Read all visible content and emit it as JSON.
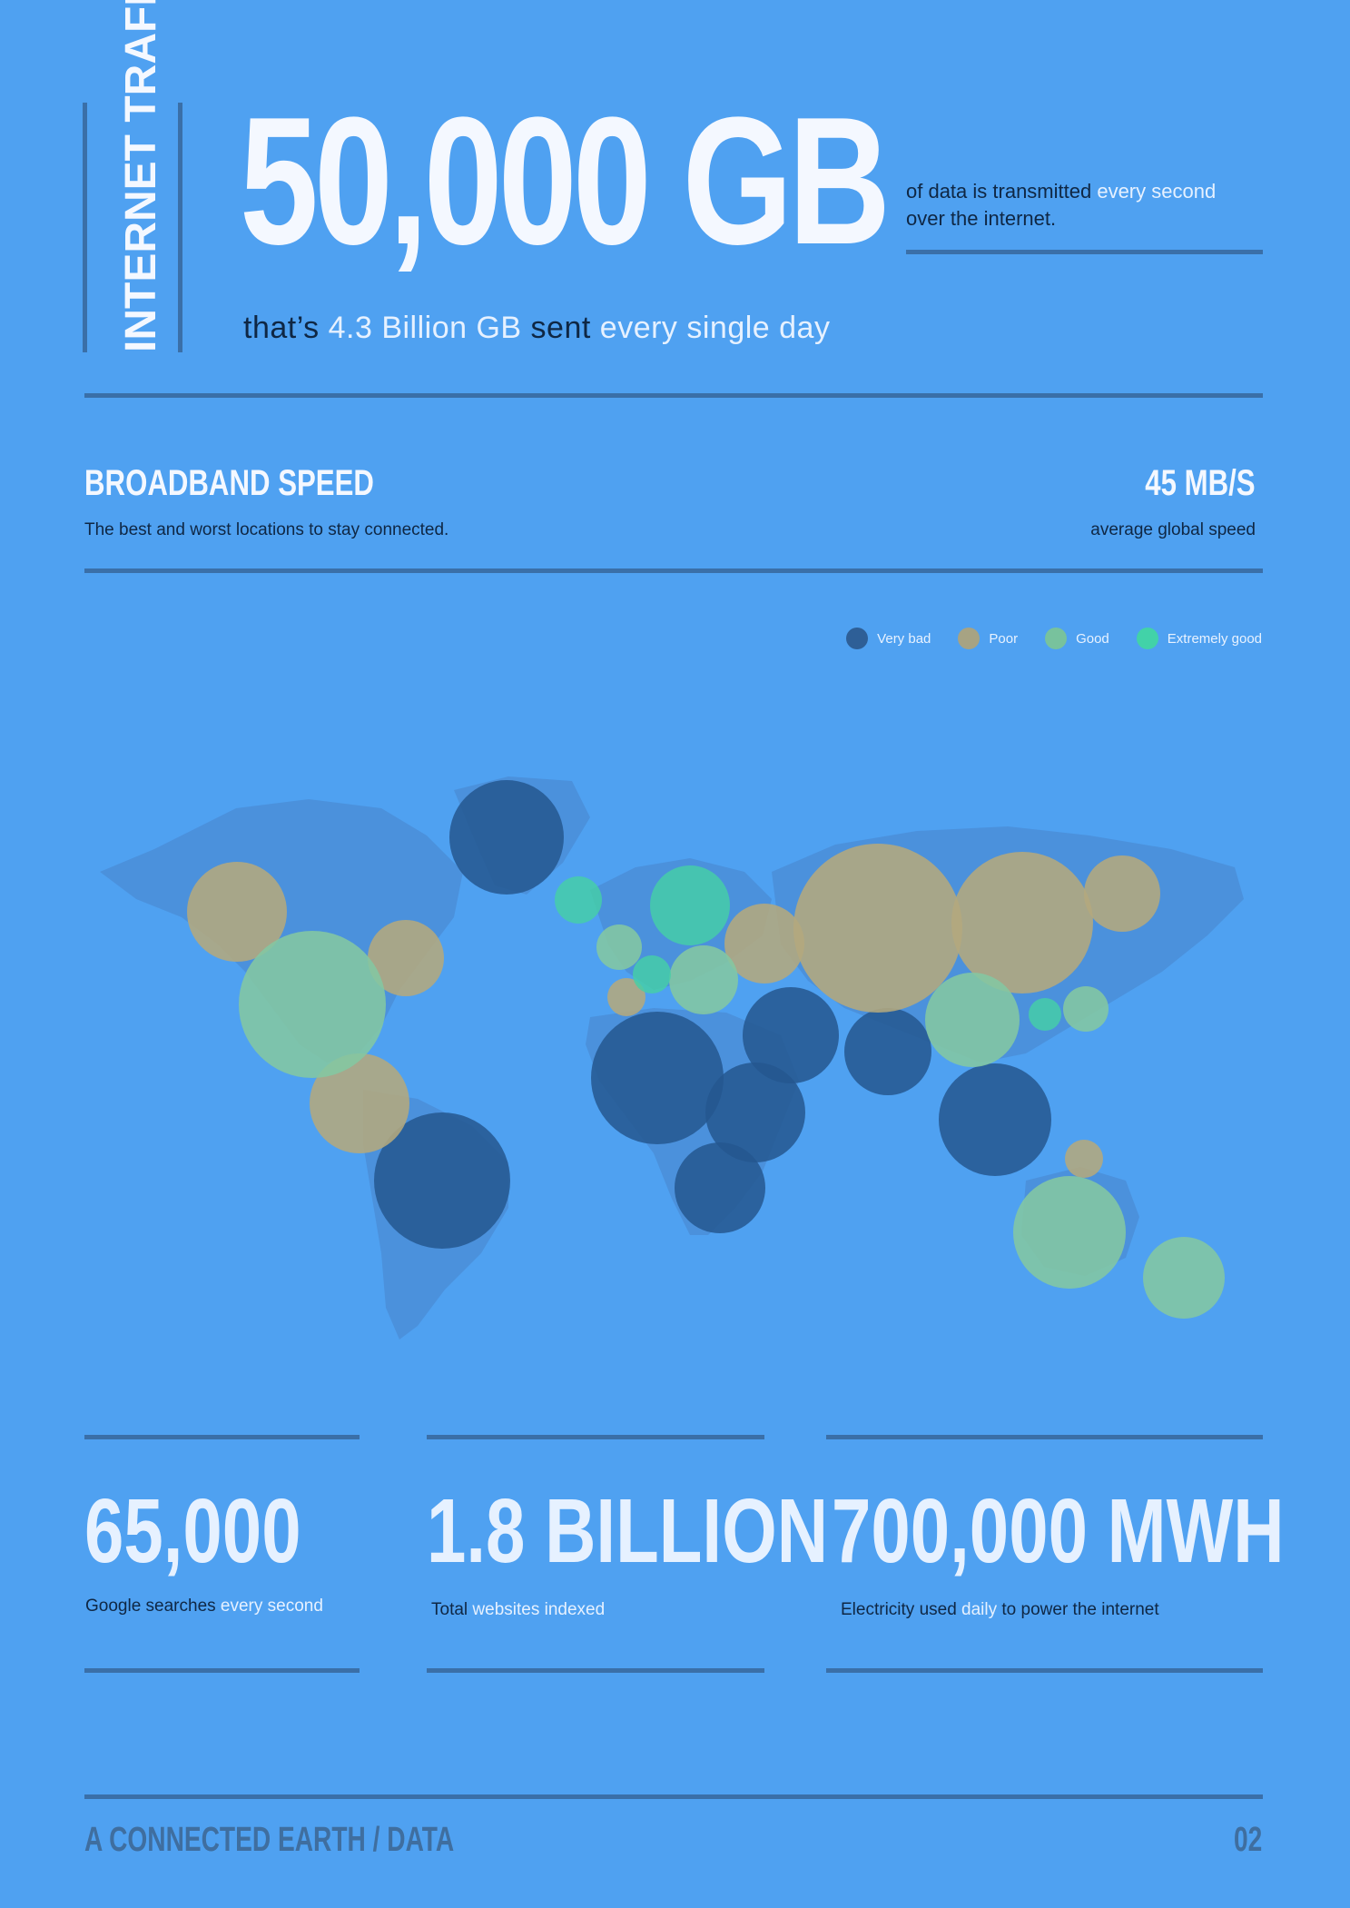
{
  "header": {
    "side_title": "INTERNET TRAFFIC",
    "big_number": "50,000 GB",
    "subline": {
      "p1": "that’s ",
      "p2": "4.3 Billion GB",
      "p3": " sent ",
      "p4": "every single day"
    },
    "description": {
      "p1": "of data is transmitted ",
      "p2": "every second",
      "p3": "over the internet."
    }
  },
  "broadband": {
    "title": "BROADBAND SPEED",
    "subtitle": "The best and worst locations to stay connected.",
    "average_value": "45 MB/S",
    "average_label": "average global speed"
  },
  "legend": [
    {
      "label": "Very bad",
      "color": "#2e5f97"
    },
    {
      "label": "Poor",
      "color": "#a7a383"
    },
    {
      "label": "Good",
      "color": "#78c29d"
    },
    {
      "label": "Extremely good",
      "color": "#42d2a8"
    }
  ],
  "stats": [
    {
      "value": "65,000",
      "label_p1": "Google searches ",
      "label_p2": "every second",
      "label_p3": ""
    },
    {
      "value": "1.8 BILLION",
      "label_p1": "Total ",
      "label_p2": "websites indexed",
      "label_p3": ""
    },
    {
      "value": "700,000 MWH",
      "label_p1": "Electricity used ",
      "label_p2": "daily",
      "label_p3": " to power the internet"
    }
  ],
  "footer": {
    "left": "A CONNECTED EARTH / DATA",
    "right": "02"
  }
}
